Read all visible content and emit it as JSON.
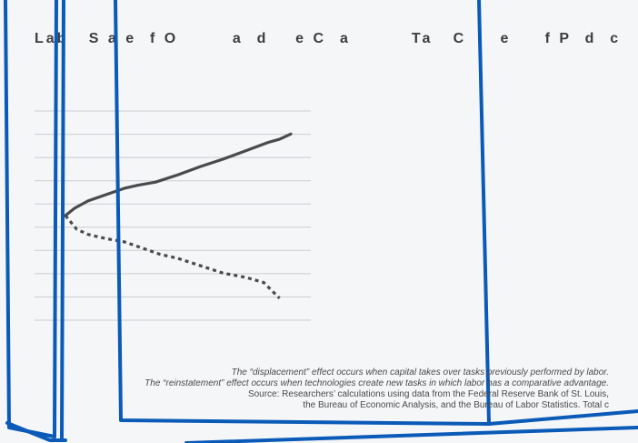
{
  "chart_data": {
    "type": "line",
    "title": "Lab   S a e  f O        a  d    e C  a         Ta   C     e     f P  d  c",
    "xlabel": "",
    "ylabel": "",
    "ylim": [
      -5,
      5
    ],
    "grid": true,
    "legend": "none",
    "series": [
      {
        "style": "solid",
        "color": "#4a4a4a",
        "x": [
          0,
          0.04,
          0.1,
          0.18,
          0.26,
          0.32,
          0.4,
          0.5,
          0.6,
          0.7,
          0.8,
          0.9,
          0.95,
          1.0
        ],
        "values": [
          0,
          0.35,
          0.7,
          1.0,
          1.3,
          1.45,
          1.6,
          1.95,
          2.35,
          2.7,
          3.1,
          3.5,
          3.65,
          3.9
        ]
      },
      {
        "style": "dashed",
        "color": "#4a4a4a",
        "x": [
          0,
          0.05,
          0.1,
          0.18,
          0.26,
          0.34,
          0.42,
          0.5,
          0.6,
          0.7,
          0.8,
          0.88,
          0.95
        ],
        "values": [
          0,
          -0.65,
          -0.9,
          -1.1,
          -1.25,
          -1.55,
          -1.85,
          -2.05,
          -2.4,
          -2.75,
          -2.95,
          -3.2,
          -3.95
        ]
      }
    ]
  },
  "notes": {
    "displacement": "The “displacement” effect occurs when capital takes over tasks previously performed by labor.",
    "reinstatement": "The “reinstatement” effect occurs when technologies create new tasks in which labor has a comparative advantage.",
    "source_line1": "Source: Researchers’ calculations using data from the Federal Reserve Bank of St. Louis,",
    "source_line2": "the Bureau of Economic Analysis, and the Bureau of Labor Statistics. Total c"
  },
  "colors": {
    "background": "#f5f6f8",
    "grid": "#c9cdd2",
    "series": "#4a4a4a",
    "overlay": "#0a5ab8"
  }
}
